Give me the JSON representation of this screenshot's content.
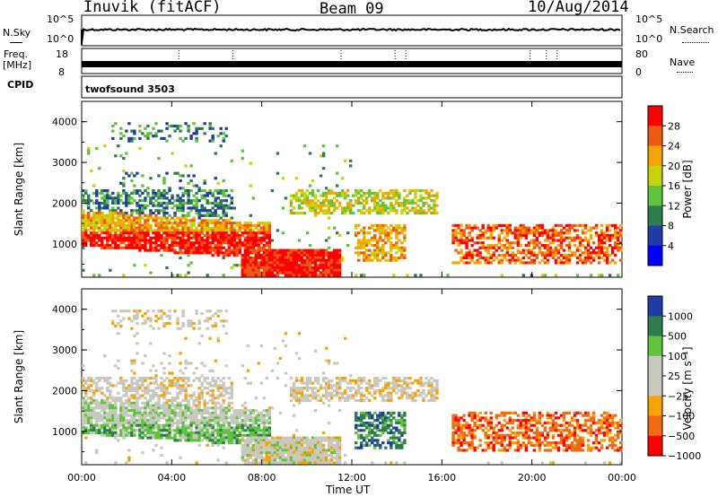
{
  "header": {
    "station": "Inuvik (fitACF)",
    "beam": "Beam 09",
    "date": "10/Aug/2014"
  },
  "noise_panel": {
    "left_label": "N.Sky",
    "right_label": "N.Search",
    "left_ticks": [
      "10^5",
      "10^0"
    ],
    "right_ticks": [
      "10^5",
      "10^0"
    ]
  },
  "freq_panel": {
    "left_label_1": "Freq.",
    "left_label_2": "[MHz]",
    "left_ticks": [
      "18",
      "8"
    ],
    "right_ticks": [
      "80",
      "0"
    ],
    "right_label": "Nave"
  },
  "cpid": {
    "label": "CPID",
    "value": "twofsound 3503"
  },
  "chart_data": [
    {
      "type": "heatmap",
      "name": "power",
      "ylabel": "Slant Range [km]",
      "yticks": [
        "4000",
        "3000",
        "2000",
        "1000"
      ],
      "ylim": [
        180,
        4500
      ],
      "xlim": [
        "00:00",
        "24:00"
      ],
      "colorbar_label": "Power [dB]",
      "colorbar_ticks": [
        "28",
        "24",
        "20",
        "16",
        "12",
        "8",
        "4"
      ],
      "colorscale": [
        "#0000ff",
        "#1f3ca8",
        "#2e7d4f",
        "#5fc33c",
        "#c8d40a",
        "#f7a300",
        "#f05a10",
        "#ff0000"
      ],
      "vmin": 0,
      "vmax": 32
    },
    {
      "type": "heatmap",
      "name": "velocity",
      "ylabel": "Slant Range [km]",
      "yticks": [
        "4000",
        "3000",
        "2000",
        "1000"
      ],
      "ylim": [
        180,
        4500
      ],
      "xlim": [
        "00:00",
        "24:00"
      ],
      "colorbar_label": "Velocity [m s⁻¹]",
      "colorbar_ticks": [
        "1000",
        "500",
        "100",
        "25",
        "−25",
        "−100",
        "−500",
        "−1000"
      ],
      "colorscale": [
        "#ff0000",
        "#f26a12",
        "#f7a300",
        "#c8c8c0",
        "#c8c8c0",
        "#5fc33c",
        "#2e7d4f",
        "#1f3ca8"
      ]
    }
  ],
  "xaxis": {
    "ticks": [
      "00:00",
      "04:00",
      "08:00",
      "12:00",
      "16:00",
      "20:00",
      "00:00"
    ],
    "label": "Time UT"
  }
}
